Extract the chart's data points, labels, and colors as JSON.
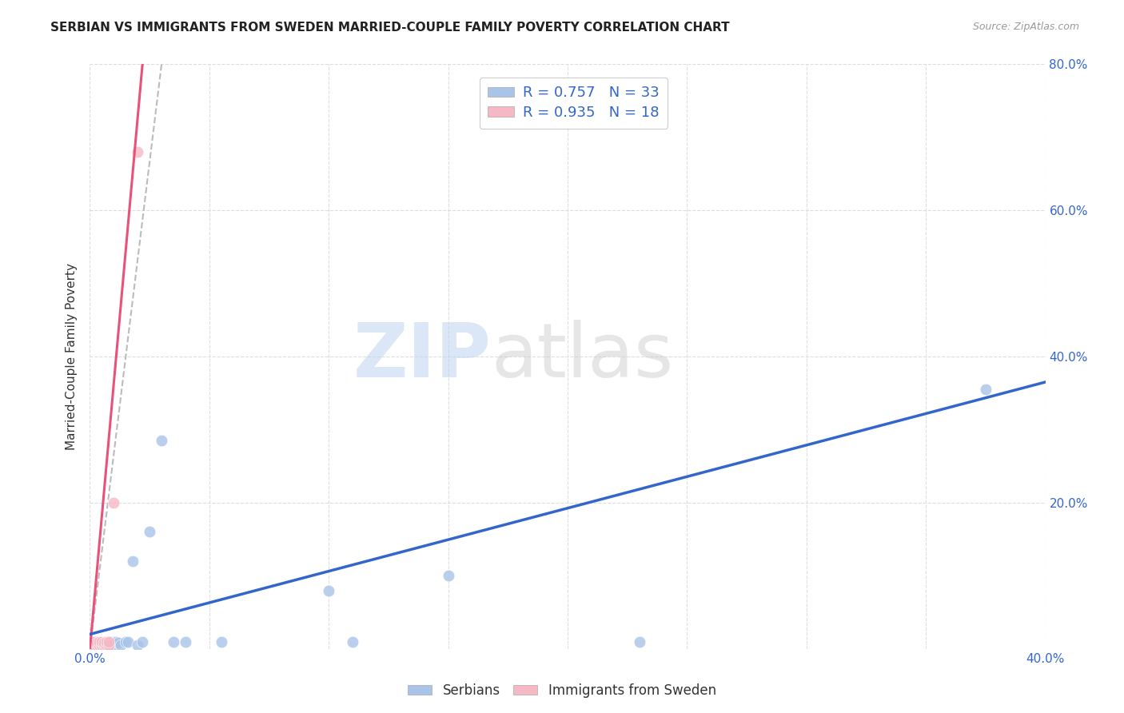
{
  "title": "SERBIAN VS IMMIGRANTS FROM SWEDEN MARRIED-COUPLE FAMILY POVERTY CORRELATION CHART",
  "source": "Source: ZipAtlas.com",
  "ylabel": "Married-Couple Family Poverty",
  "watermark_zip": "ZIP",
  "watermark_atlas": "atlas",
  "xlim": [
    0.0,
    0.4
  ],
  "ylim": [
    0.0,
    0.8
  ],
  "xticks": [
    0.0,
    0.05,
    0.1,
    0.15,
    0.2,
    0.25,
    0.3,
    0.35,
    0.4
  ],
  "yticks": [
    0.0,
    0.2,
    0.4,
    0.6,
    0.8
  ],
  "blue_R": 0.757,
  "blue_N": 33,
  "pink_R": 0.935,
  "pink_N": 18,
  "blue_color": "#a8c4e8",
  "blue_line_color": "#3366cc",
  "pink_color": "#f5b8c4",
  "pink_line_color": "#e8517a",
  "dashed_line_color": "#bbbbbb",
  "legend_label_blue": "Serbians",
  "legend_label_pink": "Immigrants from Sweden",
  "blue_scatter_x": [
    0.001,
    0.001,
    0.002,
    0.002,
    0.003,
    0.003,
    0.004,
    0.004,
    0.005,
    0.005,
    0.006,
    0.007,
    0.008,
    0.009,
    0.01,
    0.011,
    0.012,
    0.013,
    0.015,
    0.016,
    0.018,
    0.02,
    0.022,
    0.025,
    0.03,
    0.035,
    0.04,
    0.055,
    0.1,
    0.11,
    0.15,
    0.23,
    0.375
  ],
  "blue_scatter_y": [
    0.005,
    0.01,
    0.005,
    0.01,
    0.005,
    0.01,
    0.005,
    0.01,
    0.005,
    0.008,
    0.005,
    0.008,
    0.005,
    0.01,
    0.005,
    0.01,
    0.008,
    0.005,
    0.01,
    0.01,
    0.12,
    0.005,
    0.01,
    0.16,
    0.285,
    0.01,
    0.01,
    0.01,
    0.08,
    0.01,
    0.1,
    0.01,
    0.355
  ],
  "pink_scatter_x": [
    0.001,
    0.001,
    0.002,
    0.002,
    0.003,
    0.003,
    0.004,
    0.004,
    0.005,
    0.005,
    0.006,
    0.006,
    0.007,
    0.007,
    0.008,
    0.008,
    0.01,
    0.02
  ],
  "pink_scatter_y": [
    0.005,
    0.01,
    0.005,
    0.01,
    0.005,
    0.008,
    0.005,
    0.01,
    0.005,
    0.01,
    0.005,
    0.008,
    0.005,
    0.01,
    0.005,
    0.01,
    0.2,
    0.68
  ],
  "blue_trend_x": [
    0.0,
    0.4
  ],
  "blue_trend_y": [
    0.02,
    0.365
  ],
  "pink_trend_x": [
    0.0,
    0.022
  ],
  "pink_trend_y": [
    0.0,
    0.8
  ],
  "dashed_trend_x": [
    0.0,
    0.03
  ],
  "dashed_trend_y": [
    0.0,
    0.8
  ],
  "background_color": "#ffffff",
  "grid_color": "#dddddd",
  "text_color": "#3366cc",
  "label_color": "#333333",
  "source_color": "#999999"
}
